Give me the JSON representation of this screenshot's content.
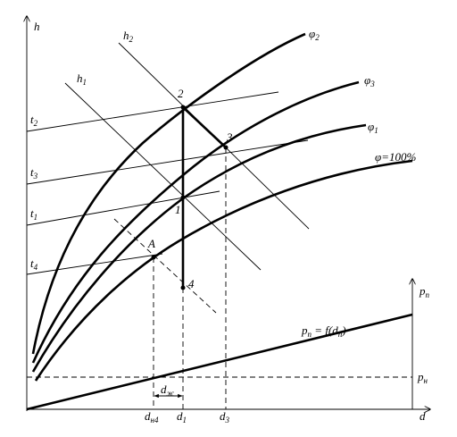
{
  "labels": {
    "h": [
      "h"
    ],
    "h2": [
      "h",
      "2"
    ],
    "h1": [
      "h",
      "1"
    ],
    "phi2": [
      "φ",
      "2"
    ],
    "phi3": [
      "φ",
      "3"
    ],
    "phi1": [
      "φ",
      "1"
    ],
    "phi100": [
      "φ=100%"
    ],
    "t2": [
      "t",
      "2"
    ],
    "t3": [
      "t",
      "3"
    ],
    "t1": [
      "t",
      "1"
    ],
    "t4": [
      "t",
      "4"
    ],
    "p2": [
      "2"
    ],
    "p3": [
      "3"
    ],
    "p1": [
      "1"
    ],
    "pA": [
      "A"
    ],
    "p4": [
      "4"
    ],
    "pp": [
      "p",
      "п"
    ],
    "formula": [
      "p",
      "п",
      " = f(d",
      "п",
      ")"
    ],
    "pn": [
      "p",
      "н"
    ],
    "dn4": [
      "d",
      "н4"
    ],
    "d1": [
      "d",
      "1"
    ],
    "d3": [
      "d",
      "3"
    ],
    "dk": [
      "d",
      "ж"
    ],
    "d": [
      "d"
    ]
  }
}
